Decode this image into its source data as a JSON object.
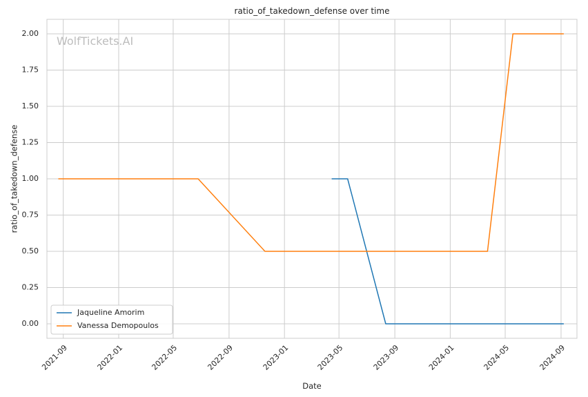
{
  "watermark": "WolfTickets.AI",
  "chart_data": {
    "type": "line",
    "title": "ratio_of_takedown_defense over time",
    "xlabel": "Date",
    "ylabel": "ratio_of_takedown_defense",
    "xlim": [
      "2021-07-27",
      "2024-10-06"
    ],
    "ylim": [
      -0.1,
      2.1
    ],
    "x_ticks": [
      {
        "date": "2021-09-01",
        "label": "2021-09"
      },
      {
        "date": "2022-01-01",
        "label": "2022-01"
      },
      {
        "date": "2022-05-01",
        "label": "2022-05"
      },
      {
        "date": "2022-09-01",
        "label": "2022-09"
      },
      {
        "date": "2023-01-01",
        "label": "2023-01"
      },
      {
        "date": "2023-05-01",
        "label": "2023-05"
      },
      {
        "date": "2023-09-01",
        "label": "2023-09"
      },
      {
        "date": "2024-01-01",
        "label": "2024-01"
      },
      {
        "date": "2024-05-01",
        "label": "2024-05"
      },
      {
        "date": "2024-09-01",
        "label": "2024-09"
      }
    ],
    "y_ticks": [
      {
        "value": 0.0,
        "label": "0.00"
      },
      {
        "value": 0.25,
        "label": "0.25"
      },
      {
        "value": 0.5,
        "label": "0.50"
      },
      {
        "value": 0.75,
        "label": "0.75"
      },
      {
        "value": 1.0,
        "label": "1.00"
      },
      {
        "value": 1.25,
        "label": "1.25"
      },
      {
        "value": 1.5,
        "label": "1.50"
      },
      {
        "value": 1.75,
        "label": "1.75"
      },
      {
        "value": 2.0,
        "label": "2.00"
      }
    ],
    "grid": true,
    "legend_position": "lower-left",
    "series": [
      {
        "name": "Jaqueline Amorim",
        "color": "#1f77b4",
        "points": [
          {
            "x": "2023-04-15",
            "y": 1.0
          },
          {
            "x": "2023-05-20",
            "y": 1.0
          },
          {
            "x": "2023-08-12",
            "y": 0.0
          },
          {
            "x": "2024-09-07",
            "y": 0.0
          }
        ]
      },
      {
        "name": "Vanessa Demopoulos",
        "color": "#ff7f0e",
        "points": [
          {
            "x": "2021-08-21",
            "y": 1.0
          },
          {
            "x": "2022-06-25",
            "y": 1.0
          },
          {
            "x": "2022-11-19",
            "y": 0.5
          },
          {
            "x": "2024-03-23",
            "y": 0.5
          },
          {
            "x": "2024-05-18",
            "y": 2.0
          },
          {
            "x": "2024-09-07",
            "y": 2.0
          }
        ]
      }
    ]
  }
}
